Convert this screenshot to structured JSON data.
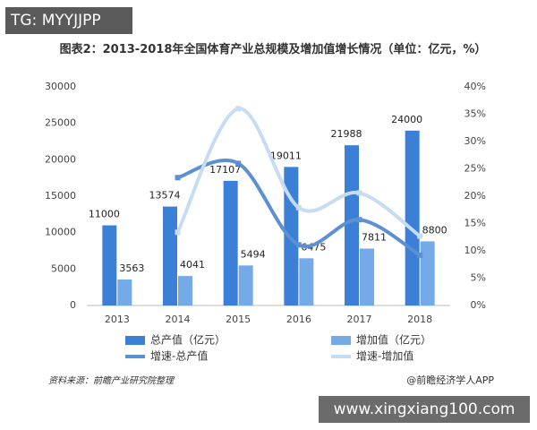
{
  "watermark": "TG: MYYJJPP",
  "chart_data": {
    "type": "bar-line",
    "title": "图表2：2013-2018年全国体育产业总规模及增加值增长情况（单位：亿元，%）",
    "categories": [
      "2013",
      "2014",
      "2015",
      "2016",
      "2017",
      "2018"
    ],
    "series": [
      {
        "name": "总产值（亿元）",
        "type": "bar",
        "color": "#3b7fd6",
        "values": [
          11000,
          13574,
          17107,
          19011,
          21988,
          24000
        ]
      },
      {
        "name": "增加值（亿元）",
        "type": "bar",
        "color": "#74aae8",
        "values": [
          3563,
          4041,
          5494,
          6475,
          7811,
          8800
        ]
      },
      {
        "name": "增速-总产值",
        "type": "line",
        "axis": "y2",
        "color": "#5d90d2",
        "values": [
          null,
          23.4,
          26.0,
          11.1,
          15.7,
          9.2
        ]
      },
      {
        "name": "增速-增加值",
        "type": "line",
        "axis": "y2",
        "color": "#c6dcf3",
        "values": [
          null,
          13.4,
          36.0,
          17.9,
          20.6,
          12.7
        ]
      }
    ],
    "ylim": [
      0,
      30000
    ],
    "yticks": [
      0,
      5000,
      10000,
      15000,
      20000,
      25000,
      30000
    ],
    "y2lim": [
      0,
      40
    ],
    "y2ticks": [
      {
        "value": 0,
        "label": "0%"
      },
      {
        "value": 5,
        "label": "5%"
      },
      {
        "value": 10,
        "label": "10%"
      },
      {
        "value": 15,
        "label": "15%"
      },
      {
        "value": 20,
        "label": "20%"
      },
      {
        "value": 25,
        "label": "25%"
      },
      {
        "value": 30,
        "label": "30%"
      },
      {
        "value": 35,
        "label": "35%"
      },
      {
        "value": 40,
        "label": "40%"
      }
    ],
    "grid": false,
    "source": "资料来源：前瞻产业研究院整理",
    "brand": "@前瞻经济学人APP"
  },
  "site": "www.xingxiang100.com"
}
